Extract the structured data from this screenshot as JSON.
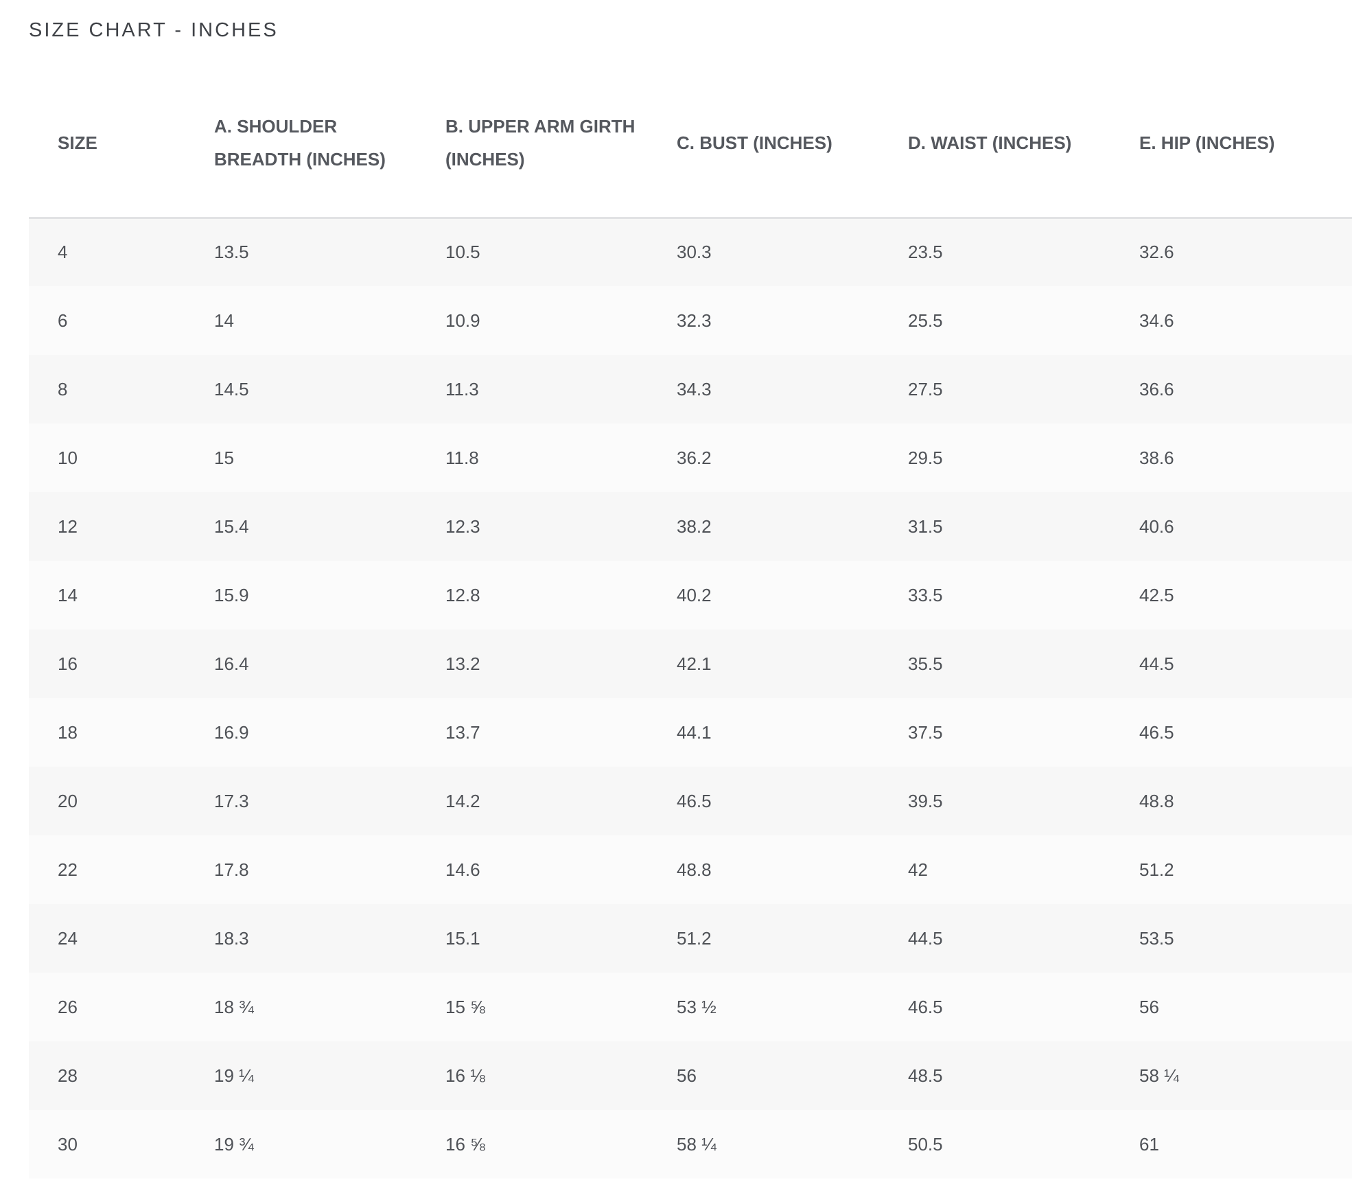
{
  "page": {
    "title": "SIZE CHART - INCHES"
  },
  "table": {
    "headers": [
      "SIZE",
      "A. SHOULDER BREADTH (INCHES)",
      "B. UPPER ARM GIRTH (INCHES)",
      "C. BUST (INCHES)",
      "D. WAIST (INCHES)",
      "E. HIP (INCHES)"
    ],
    "rows": [
      [
        "4",
        "13.5",
        "10.5",
        "30.3",
        "23.5",
        "32.6"
      ],
      [
        "6",
        "14",
        "10.9",
        "32.3",
        "25.5",
        "34.6"
      ],
      [
        "8",
        "14.5",
        "11.3",
        "34.3",
        "27.5",
        "36.6"
      ],
      [
        "10",
        "15",
        "11.8",
        "36.2",
        "29.5",
        "38.6"
      ],
      [
        "12",
        "15.4",
        "12.3",
        "38.2",
        "31.5",
        "40.6"
      ],
      [
        "14",
        "15.9",
        "12.8",
        "40.2",
        "33.5",
        "42.5"
      ],
      [
        "16",
        "16.4",
        "13.2",
        "42.1",
        "35.5",
        "44.5"
      ],
      [
        "18",
        "16.9",
        "13.7",
        "44.1",
        "37.5",
        "46.5"
      ],
      [
        "20",
        "17.3",
        "14.2",
        "46.5",
        "39.5",
        "48.8"
      ],
      [
        "22",
        "17.8",
        "14.6",
        "48.8",
        "42",
        "51.2"
      ],
      [
        "24",
        "18.3",
        "15.1",
        "51.2",
        "44.5",
        "53.5"
      ],
      [
        "26",
        "18 ¾",
        "15 ⅝",
        "53 ½",
        "46.5",
        "56"
      ],
      [
        "28",
        "19 ¼",
        "16 ⅛",
        "56",
        "48.5",
        "58 ¼"
      ],
      [
        "30",
        "19 ¾",
        "16 ⅝",
        "58 ¼",
        "50.5",
        "61"
      ]
    ]
  }
}
